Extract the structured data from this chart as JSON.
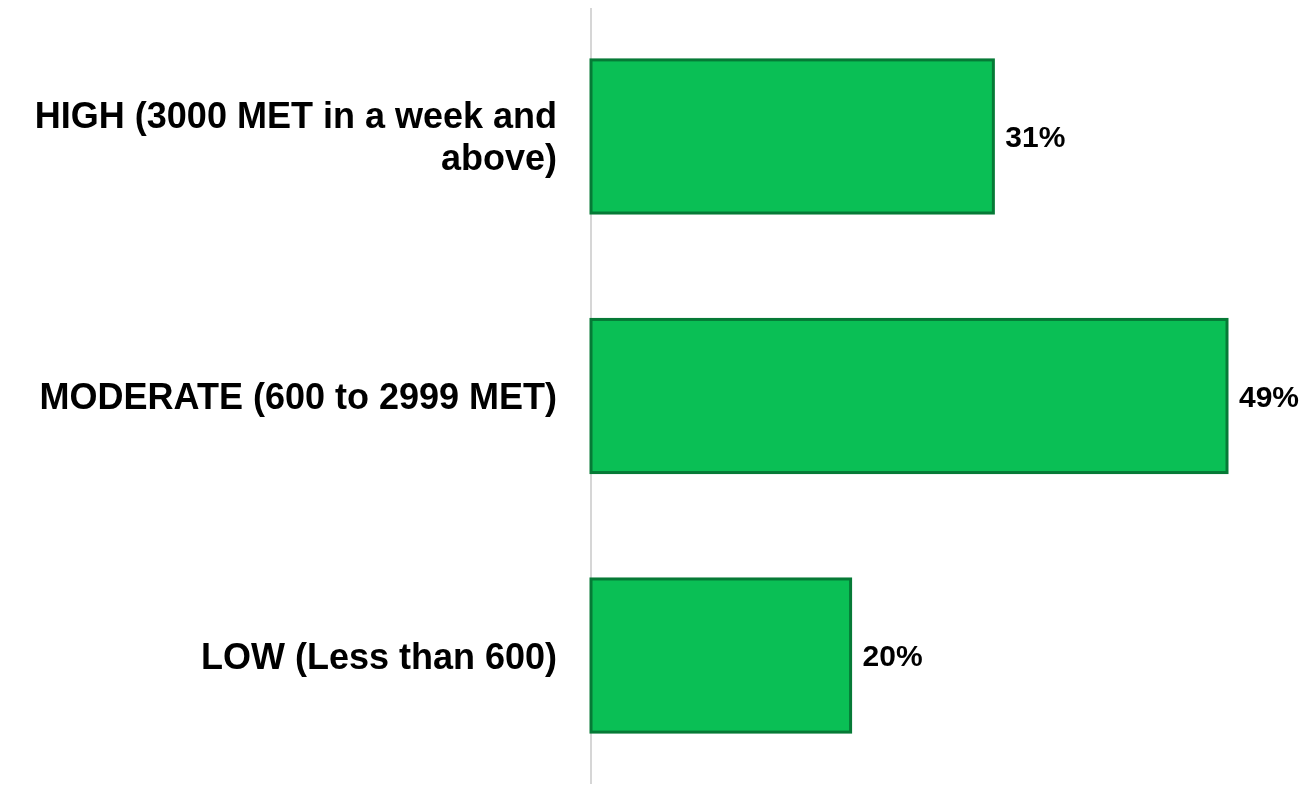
{
  "chart_data": {
    "type": "bar",
    "orientation": "horizontal",
    "categories": [
      "HIGH (3000 MET in a week and above)",
      "MODERATE (600 to 2999 MET)",
      "LOW (Less than 600)"
    ],
    "values": [
      31,
      49,
      20
    ],
    "value_labels": [
      "31%",
      "49%",
      "20%"
    ],
    "color": "#0abf55"
  }
}
